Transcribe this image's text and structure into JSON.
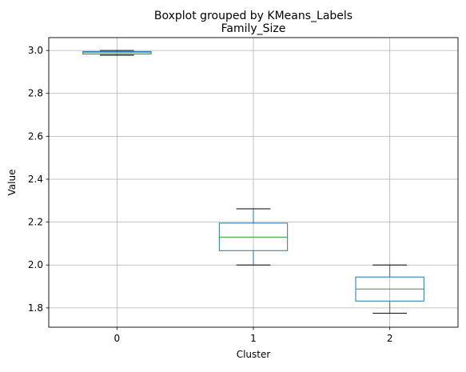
{
  "chart_data": {
    "type": "boxplot",
    "suptitle": "Boxplot grouped by KMeans_Labels",
    "title": "Family_Size",
    "xlabel": "Cluster",
    "ylabel": "Value",
    "categories": [
      "0",
      "1",
      "2"
    ],
    "ylim": [
      1.71,
      3.06
    ],
    "yticks": [
      1.8,
      2.0,
      2.2,
      2.4,
      2.6,
      2.8,
      3.0
    ],
    "ytick_labels": [
      "1.8",
      "2.0",
      "2.2",
      "2.4",
      "2.6",
      "2.8",
      "3.0"
    ],
    "grid": true,
    "boxes": [
      {
        "category": "0",
        "whisker_low": 2.978,
        "q1": 2.983,
        "median": 2.99,
        "q3": 2.995,
        "whisker_high": 3.0
      },
      {
        "category": "1",
        "whisker_low": 2.0,
        "q1": 2.067,
        "median": 2.13,
        "q3": 2.195,
        "whisker_high": 2.262
      },
      {
        "category": "2",
        "whisker_low": 1.775,
        "q1": 1.832,
        "median": 1.888,
        "q3": 1.944,
        "whisker_high": 2.0
      }
    ],
    "colors": {
      "box": "#1f77b4",
      "median": "#2ca02c",
      "whisker_cap": "#000000",
      "grid": "#b0b0b0"
    }
  }
}
